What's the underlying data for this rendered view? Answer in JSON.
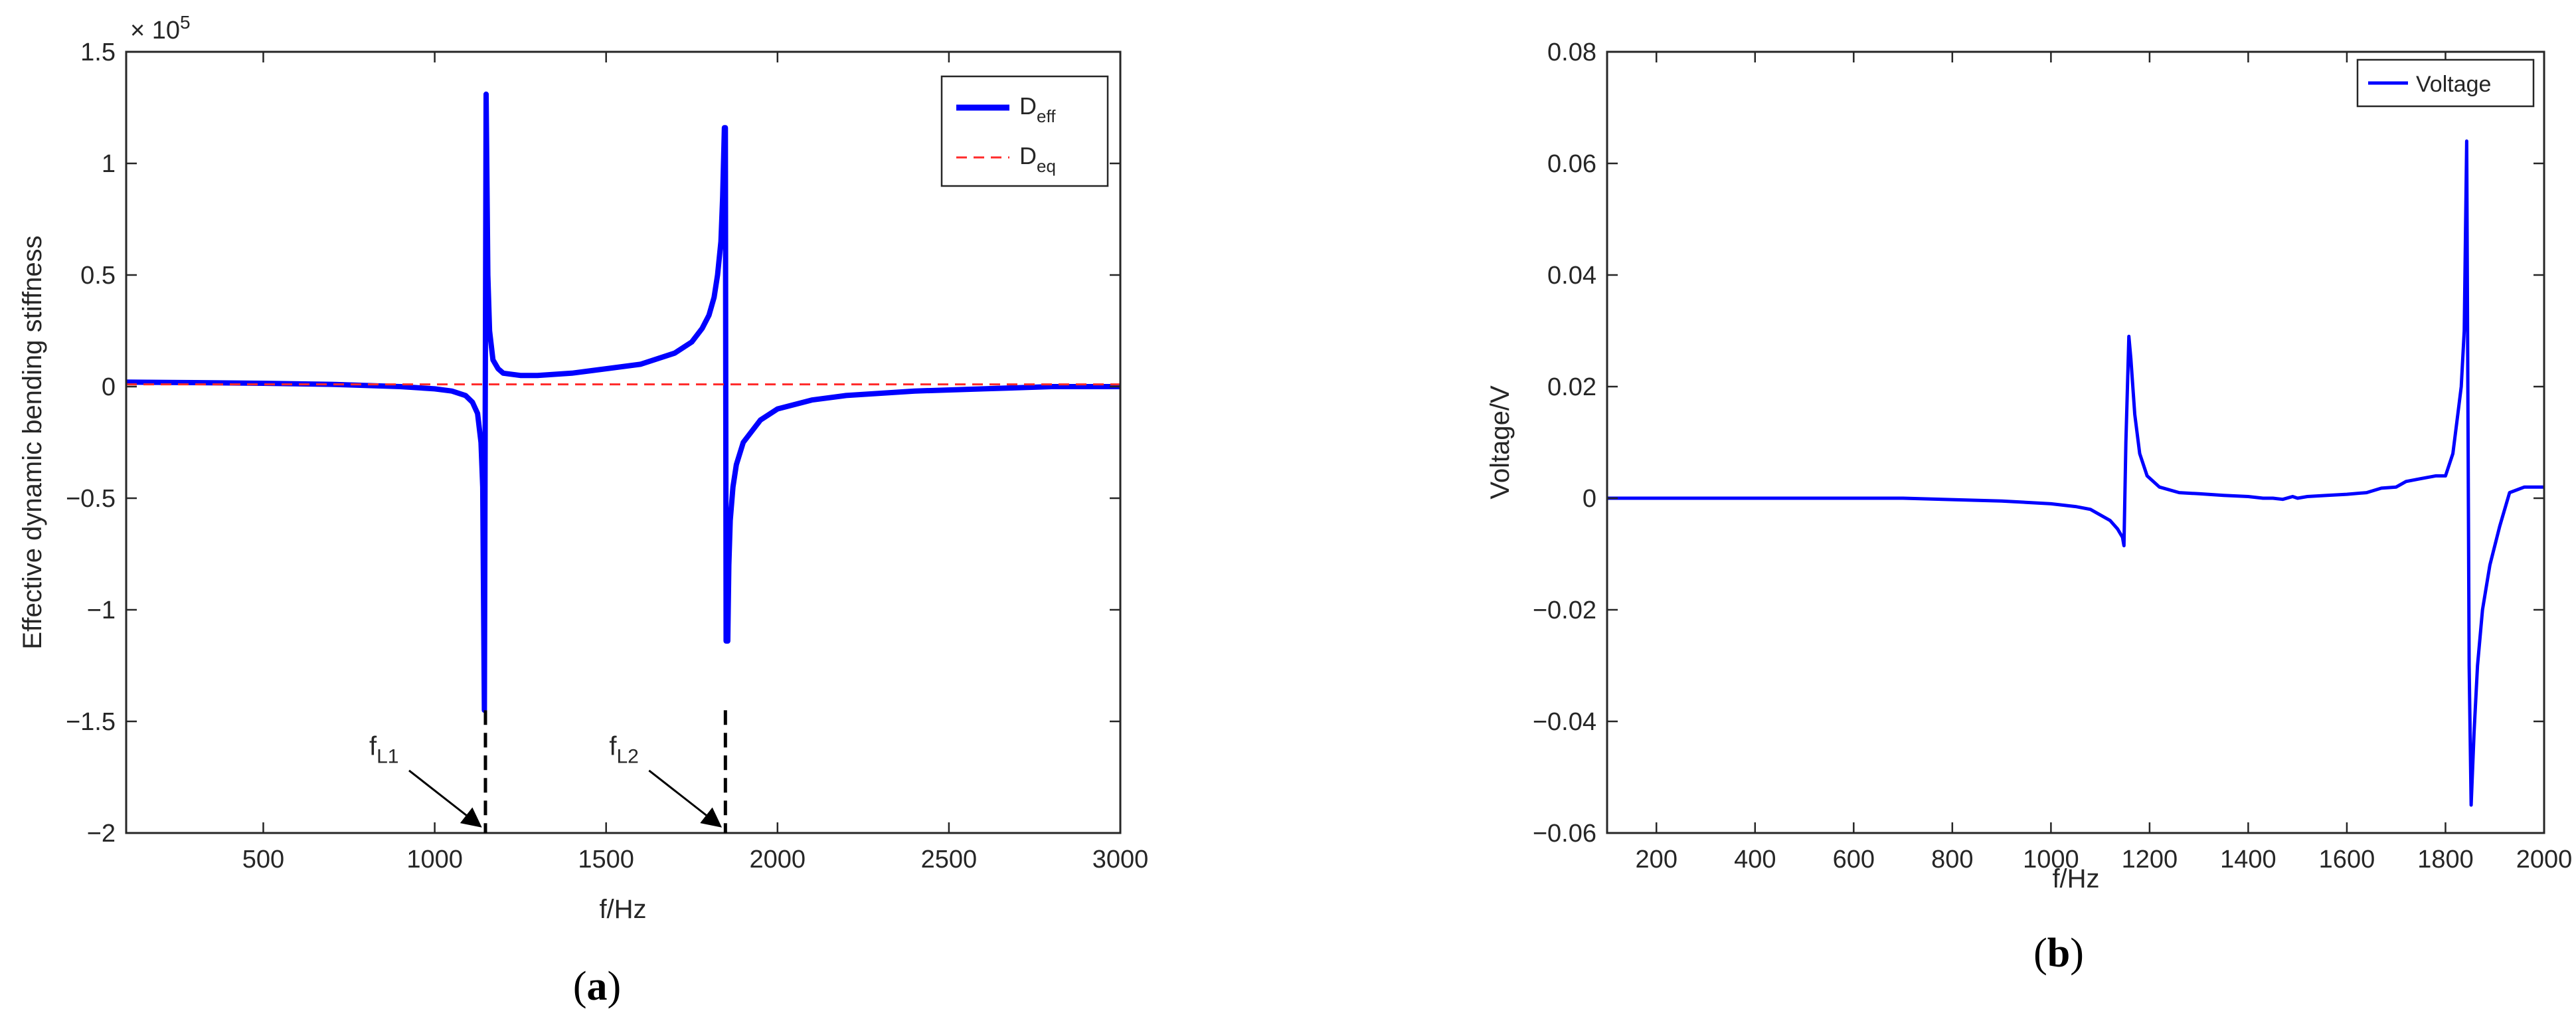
{
  "colors": {
    "deff": "#0000ff",
    "deq": "#ff2a2a",
    "marker": "#000000",
    "axis": "#262626"
  },
  "chart_data": [
    {
      "type": "line",
      "panel_label": "a",
      "xlabel": "f/Hz",
      "ylabel": "Effective dynamic bending stiffness",
      "exponent_label": "× 10^5",
      "xlim": [
        100,
        3000
      ],
      "ylim": [
        -2,
        1.5
      ],
      "xticks": [
        500,
        1000,
        1500,
        2000,
        2500,
        3000
      ],
      "yticks": [
        -2,
        -1.5,
        -1,
        -0.5,
        0,
        0.5,
        1,
        1.5
      ],
      "xtick_labels": [
        "500",
        "1000",
        "1500",
        "2000",
        "2500",
        "3000"
      ],
      "ytick_labels": [
        "−2",
        "−1.5",
        "−1",
        "−0.5",
        "0",
        "0.5",
        "1",
        "1.5"
      ],
      "grid": false,
      "legend_position": "top-right",
      "series": [
        {
          "name": "D",
          "name_sub": "eff",
          "style": "solid",
          "x": [
            100,
            300,
            500,
            700,
            900,
            1000,
            1050,
            1090,
            1110,
            1125,
            1135,
            1140,
            1145,
            1150,
            1152,
            1155,
            1160,
            1170,
            1185,
            1200,
            1250,
            1300,
            1400,
            1500,
            1600,
            1700,
            1750,
            1780,
            1800,
            1815,
            1825,
            1835,
            1840,
            1845,
            1848,
            1850,
            1855,
            1858,
            1862,
            1870,
            1880,
            1900,
            1950,
            2000,
            2100,
            2200,
            2400,
            2600,
            2800,
            3000
          ],
          "y": [
            0.02,
            0.018,
            0.015,
            0.01,
            0.0,
            -0.01,
            -0.02,
            -0.04,
            -0.07,
            -0.12,
            -0.25,
            -0.45,
            -1.45,
            1.31,
            1.0,
            0.5,
            0.25,
            0.12,
            0.08,
            0.06,
            0.05,
            0.05,
            0.06,
            0.08,
            0.1,
            0.15,
            0.2,
            0.26,
            0.32,
            0.4,
            0.5,
            0.65,
            0.85,
            1.16,
            1.16,
            -1.14,
            -1.14,
            -0.8,
            -0.6,
            -0.45,
            -0.35,
            -0.25,
            -0.15,
            -0.1,
            -0.06,
            -0.04,
            -0.02,
            -0.01,
            0.0,
            0.0
          ]
        },
        {
          "name": "D",
          "name_sub": "eq",
          "style": "dashed",
          "x": [
            100,
            3000
          ],
          "y": [
            0.01,
            0.01
          ]
        }
      ],
      "annotations": [
        {
          "text": "f",
          "sub": "L1",
          "x": 1148
        },
        {
          "text": "f",
          "sub": "L2",
          "x": 1848
        }
      ]
    },
    {
      "type": "line",
      "panel_label": "b",
      "xlabel": "f/Hz",
      "ylabel": "Voltage/V",
      "xlim": [
        100,
        2000
      ],
      "ylim": [
        -0.06,
        0.08
      ],
      "xticks": [
        200,
        400,
        600,
        800,
        1000,
        1200,
        1400,
        1600,
        1800,
        2000
      ],
      "yticks": [
        -0.06,
        -0.04,
        -0.02,
        0,
        0.02,
        0.04,
        0.06,
        0.08
      ],
      "xtick_labels": [
        "200",
        "400",
        "600",
        "800",
        "1000",
        "1200",
        "1400",
        "1600",
        "1800",
        "2000"
      ],
      "ytick_labels": [
        "−0.06",
        "−0.04",
        "−0.02",
        "0",
        "0.02",
        "0.04",
        "0.06",
        "0.08"
      ],
      "grid": false,
      "legend_position": "top-right",
      "series": [
        {
          "name": "Voltage",
          "style": "solid",
          "x": [
            100,
            400,
            700,
            900,
            1000,
            1050,
            1080,
            1100,
            1120,
            1135,
            1145,
            1148,
            1152,
            1158,
            1162,
            1170,
            1180,
            1195,
            1220,
            1260,
            1300,
            1350,
            1400,
            1430,
            1450,
            1470,
            1490,
            1500,
            1520,
            1560,
            1600,
            1640,
            1670,
            1700,
            1720,
            1750,
            1780,
            1800,
            1815,
            1825,
            1832,
            1838,
            1843,
            1848,
            1852,
            1858,
            1865,
            1875,
            1890,
            1910,
            1930,
            1960,
            2000
          ],
          "y": [
            0.0,
            0.0,
            0.0,
            -0.0005,
            -0.001,
            -0.0015,
            -0.002,
            -0.003,
            -0.004,
            -0.0055,
            -0.007,
            -0.0085,
            0.01,
            0.029,
            0.025,
            0.015,
            0.008,
            0.004,
            0.002,
            0.001,
            0.0008,
            0.0005,
            0.0003,
            0.0,
            0.0,
            -0.0002,
            0.0003,
            0.0,
            0.0003,
            0.0005,
            0.0007,
            0.001,
            0.0018,
            0.002,
            0.003,
            0.0035,
            0.004,
            0.004,
            0.008,
            0.015,
            0.02,
            0.03,
            0.064,
            -0.03,
            -0.055,
            -0.042,
            -0.03,
            -0.02,
            -0.012,
            -0.005,
            0.001,
            0.002,
            0.002
          ]
        }
      ]
    }
  ]
}
